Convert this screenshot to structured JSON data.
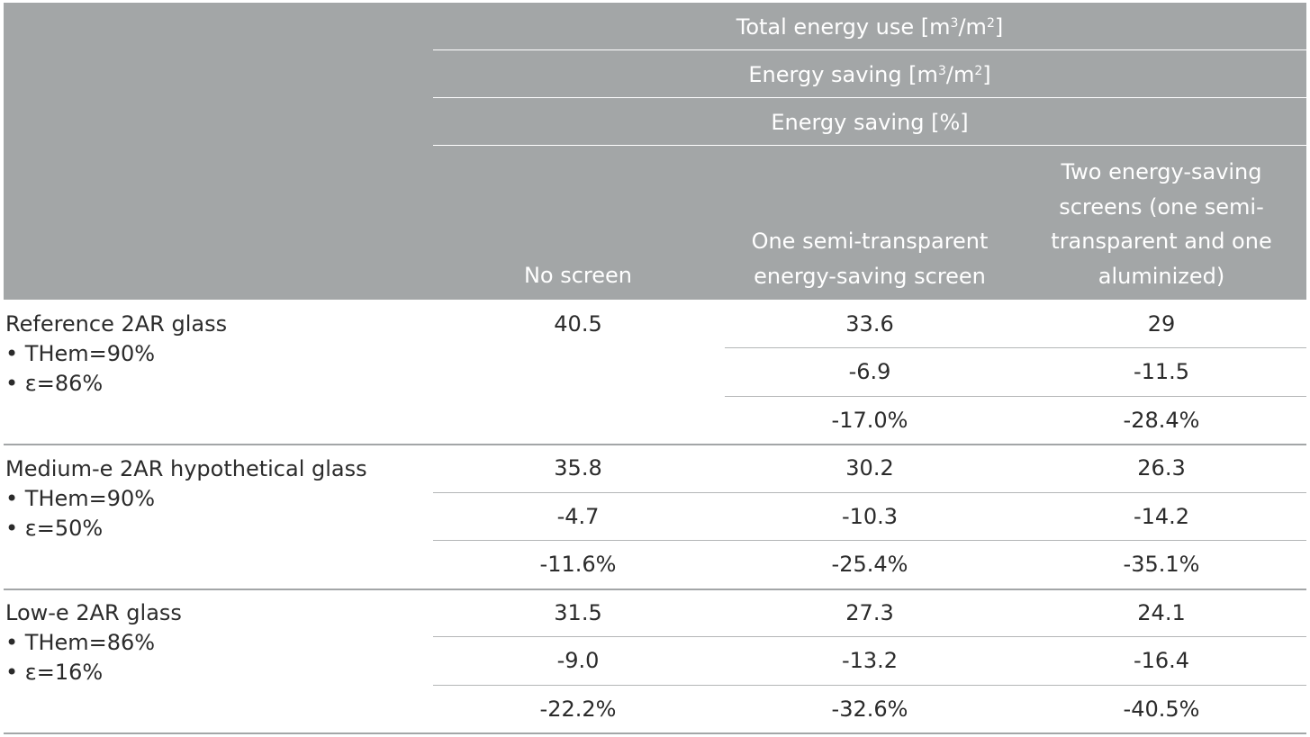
{
  "header": {
    "row1": {
      "text": "Total energy use [m",
      "sup1": "3",
      "mid": "/m",
      "sup2": "2",
      "end": "]"
    },
    "row2": {
      "text": "Energy saving [m",
      "sup1": "3",
      "mid": "/m",
      "sup2": "2",
      "end": "]"
    },
    "row3": "Energy saving [%]",
    "columns": [
      [
        "No screen"
      ],
      [
        "One semi-transparent",
        "energy-saving screen"
      ],
      [
        "Two energy-saving",
        "screens (one semi-",
        "transparent and one",
        "aluminized)"
      ]
    ]
  },
  "rows": [
    {
      "label": [
        "Reference 2AR glass",
        "• THem=90%",
        "• ε=86%"
      ],
      "cells": [
        [
          "40.5",
          "33.6",
          "29"
        ],
        [
          "",
          "-6.9",
          "-11.5"
        ],
        [
          "",
          "-17.0%",
          "-28.4%"
        ]
      ]
    },
    {
      "label": [
        "Medium-e 2AR hypothetical glass",
        "• THem=90%",
        "• ε=50%"
      ],
      "cells": [
        [
          "35.8",
          "30.2",
          "26.3"
        ],
        [
          "-4.7",
          "-10.3",
          "-14.2"
        ],
        [
          "-11.6%",
          "-25.4%",
          "-35.1%"
        ]
      ]
    },
    {
      "label": [
        "Low-e 2AR glass",
        "• THem=86%",
        "• ε=16%"
      ],
      "cells": [
        [
          "31.5",
          "27.3",
          "24.1"
        ],
        [
          "-9.0",
          "-13.2",
          "-16.4"
        ],
        [
          "-22.2%",
          "-32.6%",
          "-40.5%"
        ]
      ]
    }
  ]
}
